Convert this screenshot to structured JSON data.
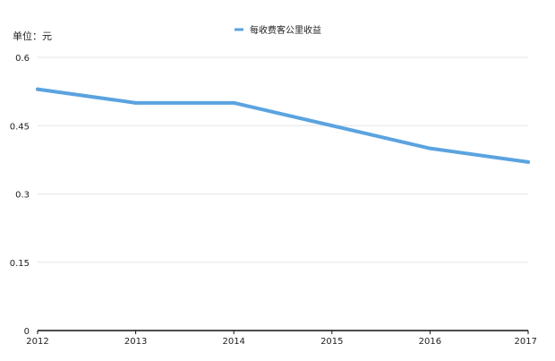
{
  "chart_data": {
    "type": "line",
    "unit_label": "单位：元",
    "x": [
      "2012",
      "2013",
      "2014",
      "2015",
      "2016",
      "2017"
    ],
    "series": [
      {
        "name": "每收费客公里收益",
        "values": [
          0.53,
          0.5,
          0.5,
          0.45,
          0.4,
          0.37
        ],
        "color": "#5ba3e0"
      }
    ],
    "yticks": [
      "0",
      "0.15",
      "0.3",
      "0.45",
      "0.6"
    ],
    "ylim": [
      0,
      0.6
    ],
    "grid": true,
    "legend": "top-center"
  }
}
